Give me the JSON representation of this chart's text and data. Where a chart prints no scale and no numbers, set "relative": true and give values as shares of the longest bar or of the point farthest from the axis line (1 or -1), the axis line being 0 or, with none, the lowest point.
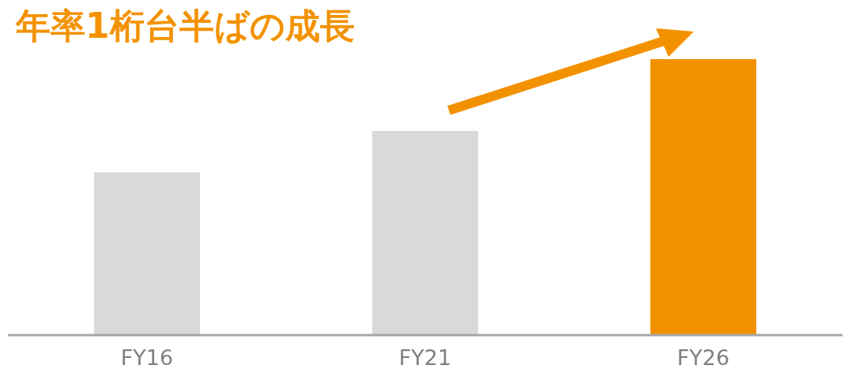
{
  "chart_data": {
    "type": "bar",
    "title": "年率1桁台半ばの成長",
    "relative": true,
    "categories": [
      "FY16",
      "FY21",
      "FY26"
    ],
    "values": [
      0.59,
      0.74,
      1
    ],
    "colors": [
      "#d9d9d9",
      "#d9d9d9",
      "#f39200"
    ]
  }
}
